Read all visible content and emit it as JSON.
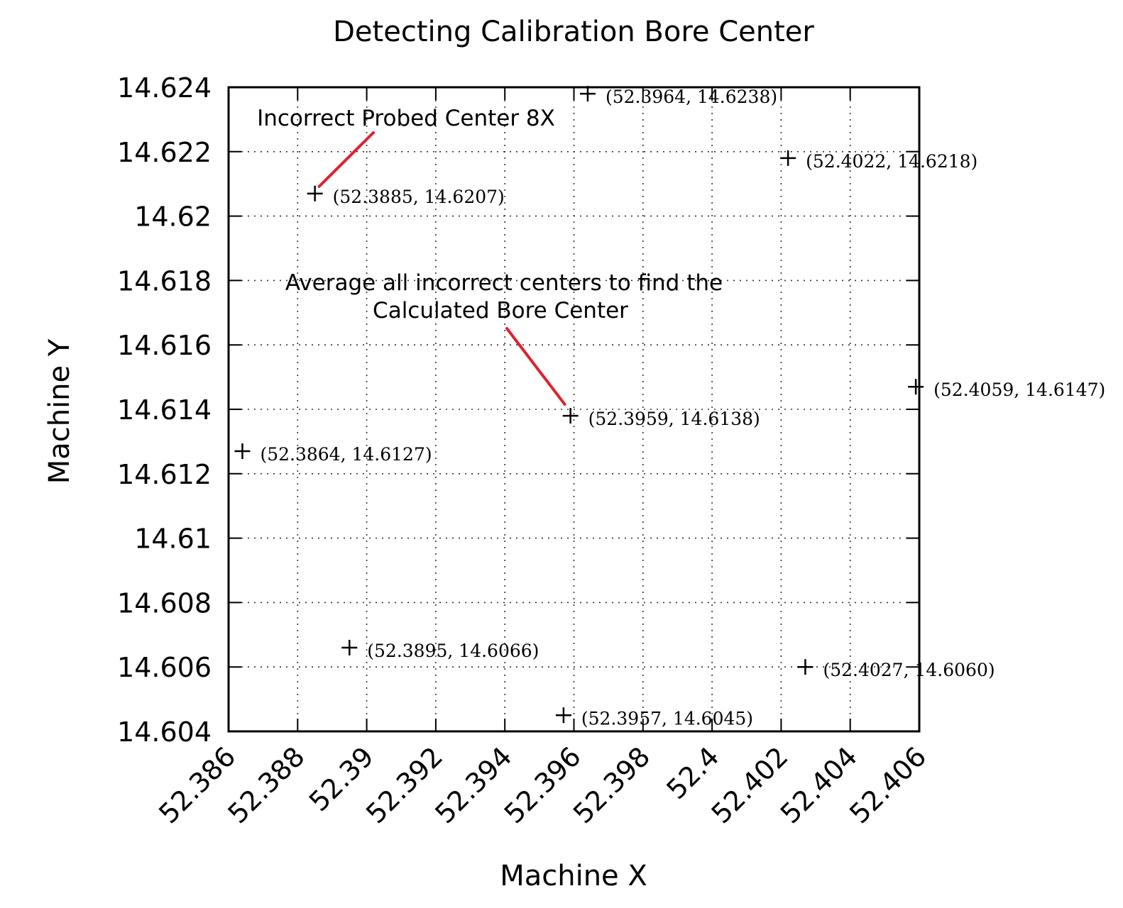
{
  "chart_data": {
    "type": "scatter",
    "title": "Detecting Calibration Bore Center",
    "xlabel": "Machine X",
    "ylabel": "Machine Y",
    "xlim": [
      52.386,
      52.406
    ],
    "ylim": [
      14.604,
      14.624
    ],
    "grid": true,
    "marker": "+",
    "xticks": [
      "52.386",
      "52.388",
      "52.39",
      "52.392",
      "52.394",
      "52.396",
      "52.398",
      "52.4",
      "52.402",
      "52.404",
      "52.406"
    ],
    "yticks": [
      "14.604",
      "14.606",
      "14.608",
      "14.61",
      "14.612",
      "14.614",
      "14.616",
      "14.618",
      "14.62",
      "14.622",
      "14.624"
    ],
    "points": [
      {
        "x": 52.3964,
        "y": 14.6238,
        "label": "(52.3964, 14.6238)"
      },
      {
        "x": 52.4022,
        "y": 14.6218,
        "label": "(52.4022, 14.6218)"
      },
      {
        "x": 52.3885,
        "y": 14.6207,
        "label": "(52.3885, 14.6207)"
      },
      {
        "x": 52.4059,
        "y": 14.6147,
        "label": "(52.4059, 14.6147)"
      },
      {
        "x": 52.3959,
        "y": 14.6138,
        "label": "(52.3959, 14.6138)"
      },
      {
        "x": 52.3864,
        "y": 14.6127,
        "label": "(52.3864, 14.6127)"
      },
      {
        "x": 52.3895,
        "y": 14.6066,
        "label": "(52.3895, 14.6066)"
      },
      {
        "x": 52.4027,
        "y": 14.606,
        "label": "(52.4027, 14.6060)"
      },
      {
        "x": 52.3957,
        "y": 14.6045,
        "label": "(52.3957, 14.6045)"
      }
    ],
    "annotations": [
      {
        "lines": [
          "Incorrect Probed Center 8X"
        ],
        "points_to": [
          52.3885,
          14.6207
        ]
      },
      {
        "lines": [
          "Average all incorrect centers to find the",
          "Calculated Bore Center"
        ],
        "points_to": [
          52.3959,
          14.6138
        ]
      }
    ],
    "colors": {
      "pointer": "#e0202e",
      "marker": "#000000"
    }
  }
}
